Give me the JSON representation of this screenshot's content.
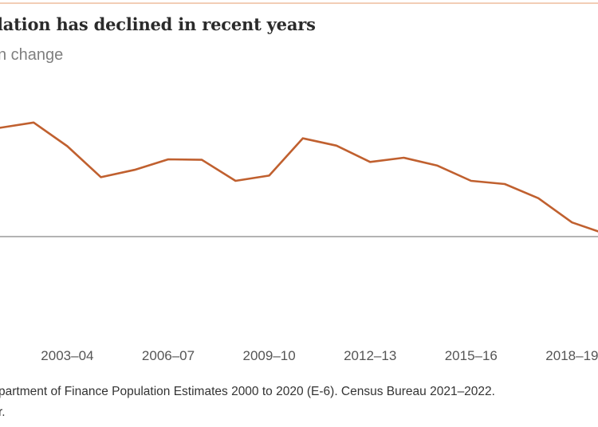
{
  "header": {
    "title": "lation has declined in recent years",
    "subtitle": "n change"
  },
  "footer": {
    "source": "partment of Finance Population Estimates 2000 to 2020 (E-6). Census Bureau 2021–2022.",
    "note": "r."
  },
  "chart_data": {
    "type": "line",
    "title": "lation has declined in recent years",
    "subtitle": "n change",
    "x_tick_labels": [
      "2003–04",
      "2006–07",
      "2009–10",
      "2012–13",
      "2015–16",
      "2018–19"
    ],
    "x": [
      "2001–02",
      "2002–03",
      "2003–04",
      "2004–05",
      "2005–06",
      "2006–07",
      "2007–08",
      "2008–09",
      "2009–10",
      "2010–11",
      "2011–12",
      "2012–13",
      "2013–14",
      "2014–15",
      "2015–16",
      "2016–17",
      "2017–18",
      "2018–19",
      "2019–20"
    ],
    "series": [
      {
        "values": [
          2.07,
          2.17,
          1.72,
          1.13,
          1.27,
          1.47,
          1.46,
          1.06,
          1.16,
          1.87,
          1.73,
          1.42,
          1.5,
          1.35,
          1.06,
          1.0,
          0.73,
          0.27,
          0.05
        ],
        "color": "#c0602f"
      }
    ],
    "zero_line": true,
    "grid": false,
    "colors": {
      "line": "#c0602f",
      "baseline": "#9a9a9a",
      "top_rule": "#f2cdb6"
    }
  }
}
